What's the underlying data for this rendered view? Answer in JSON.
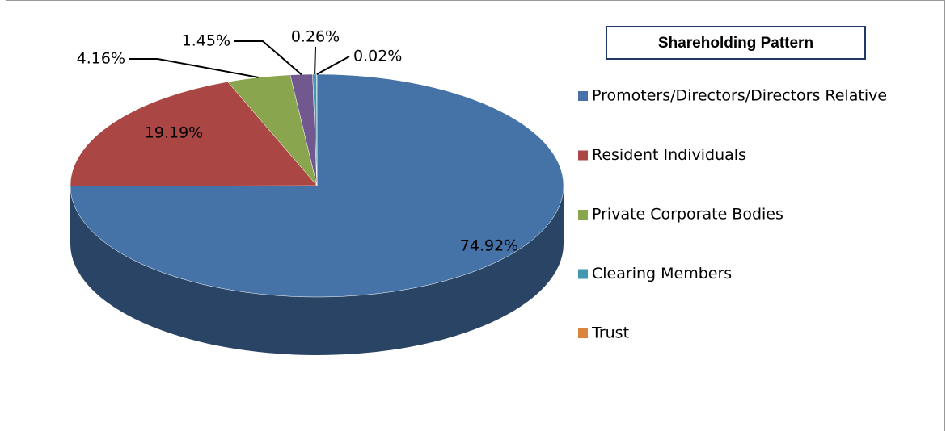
{
  "chart_data": {
    "type": "pie",
    "title": "Shareholding Pattern",
    "categories": [
      "Promoters/Directors/Directors Relative",
      "Resident Individuals",
      "Private Corporate Bodies",
      null,
      "Clearing Members",
      "Trust"
    ],
    "values": [
      74.92,
      19.19,
      4.16,
      1.45,
      0.26,
      0.02
    ],
    "value_labels": [
      "74.92%",
      "19.19%",
      "4.16%",
      "1.45%",
      "0.26%",
      "0.02%"
    ],
    "colors": [
      "#4572a7",
      "#aa4643",
      "#89a54e",
      "#71588f",
      "#4198af",
      "#db843d"
    ],
    "legend": "right"
  }
}
